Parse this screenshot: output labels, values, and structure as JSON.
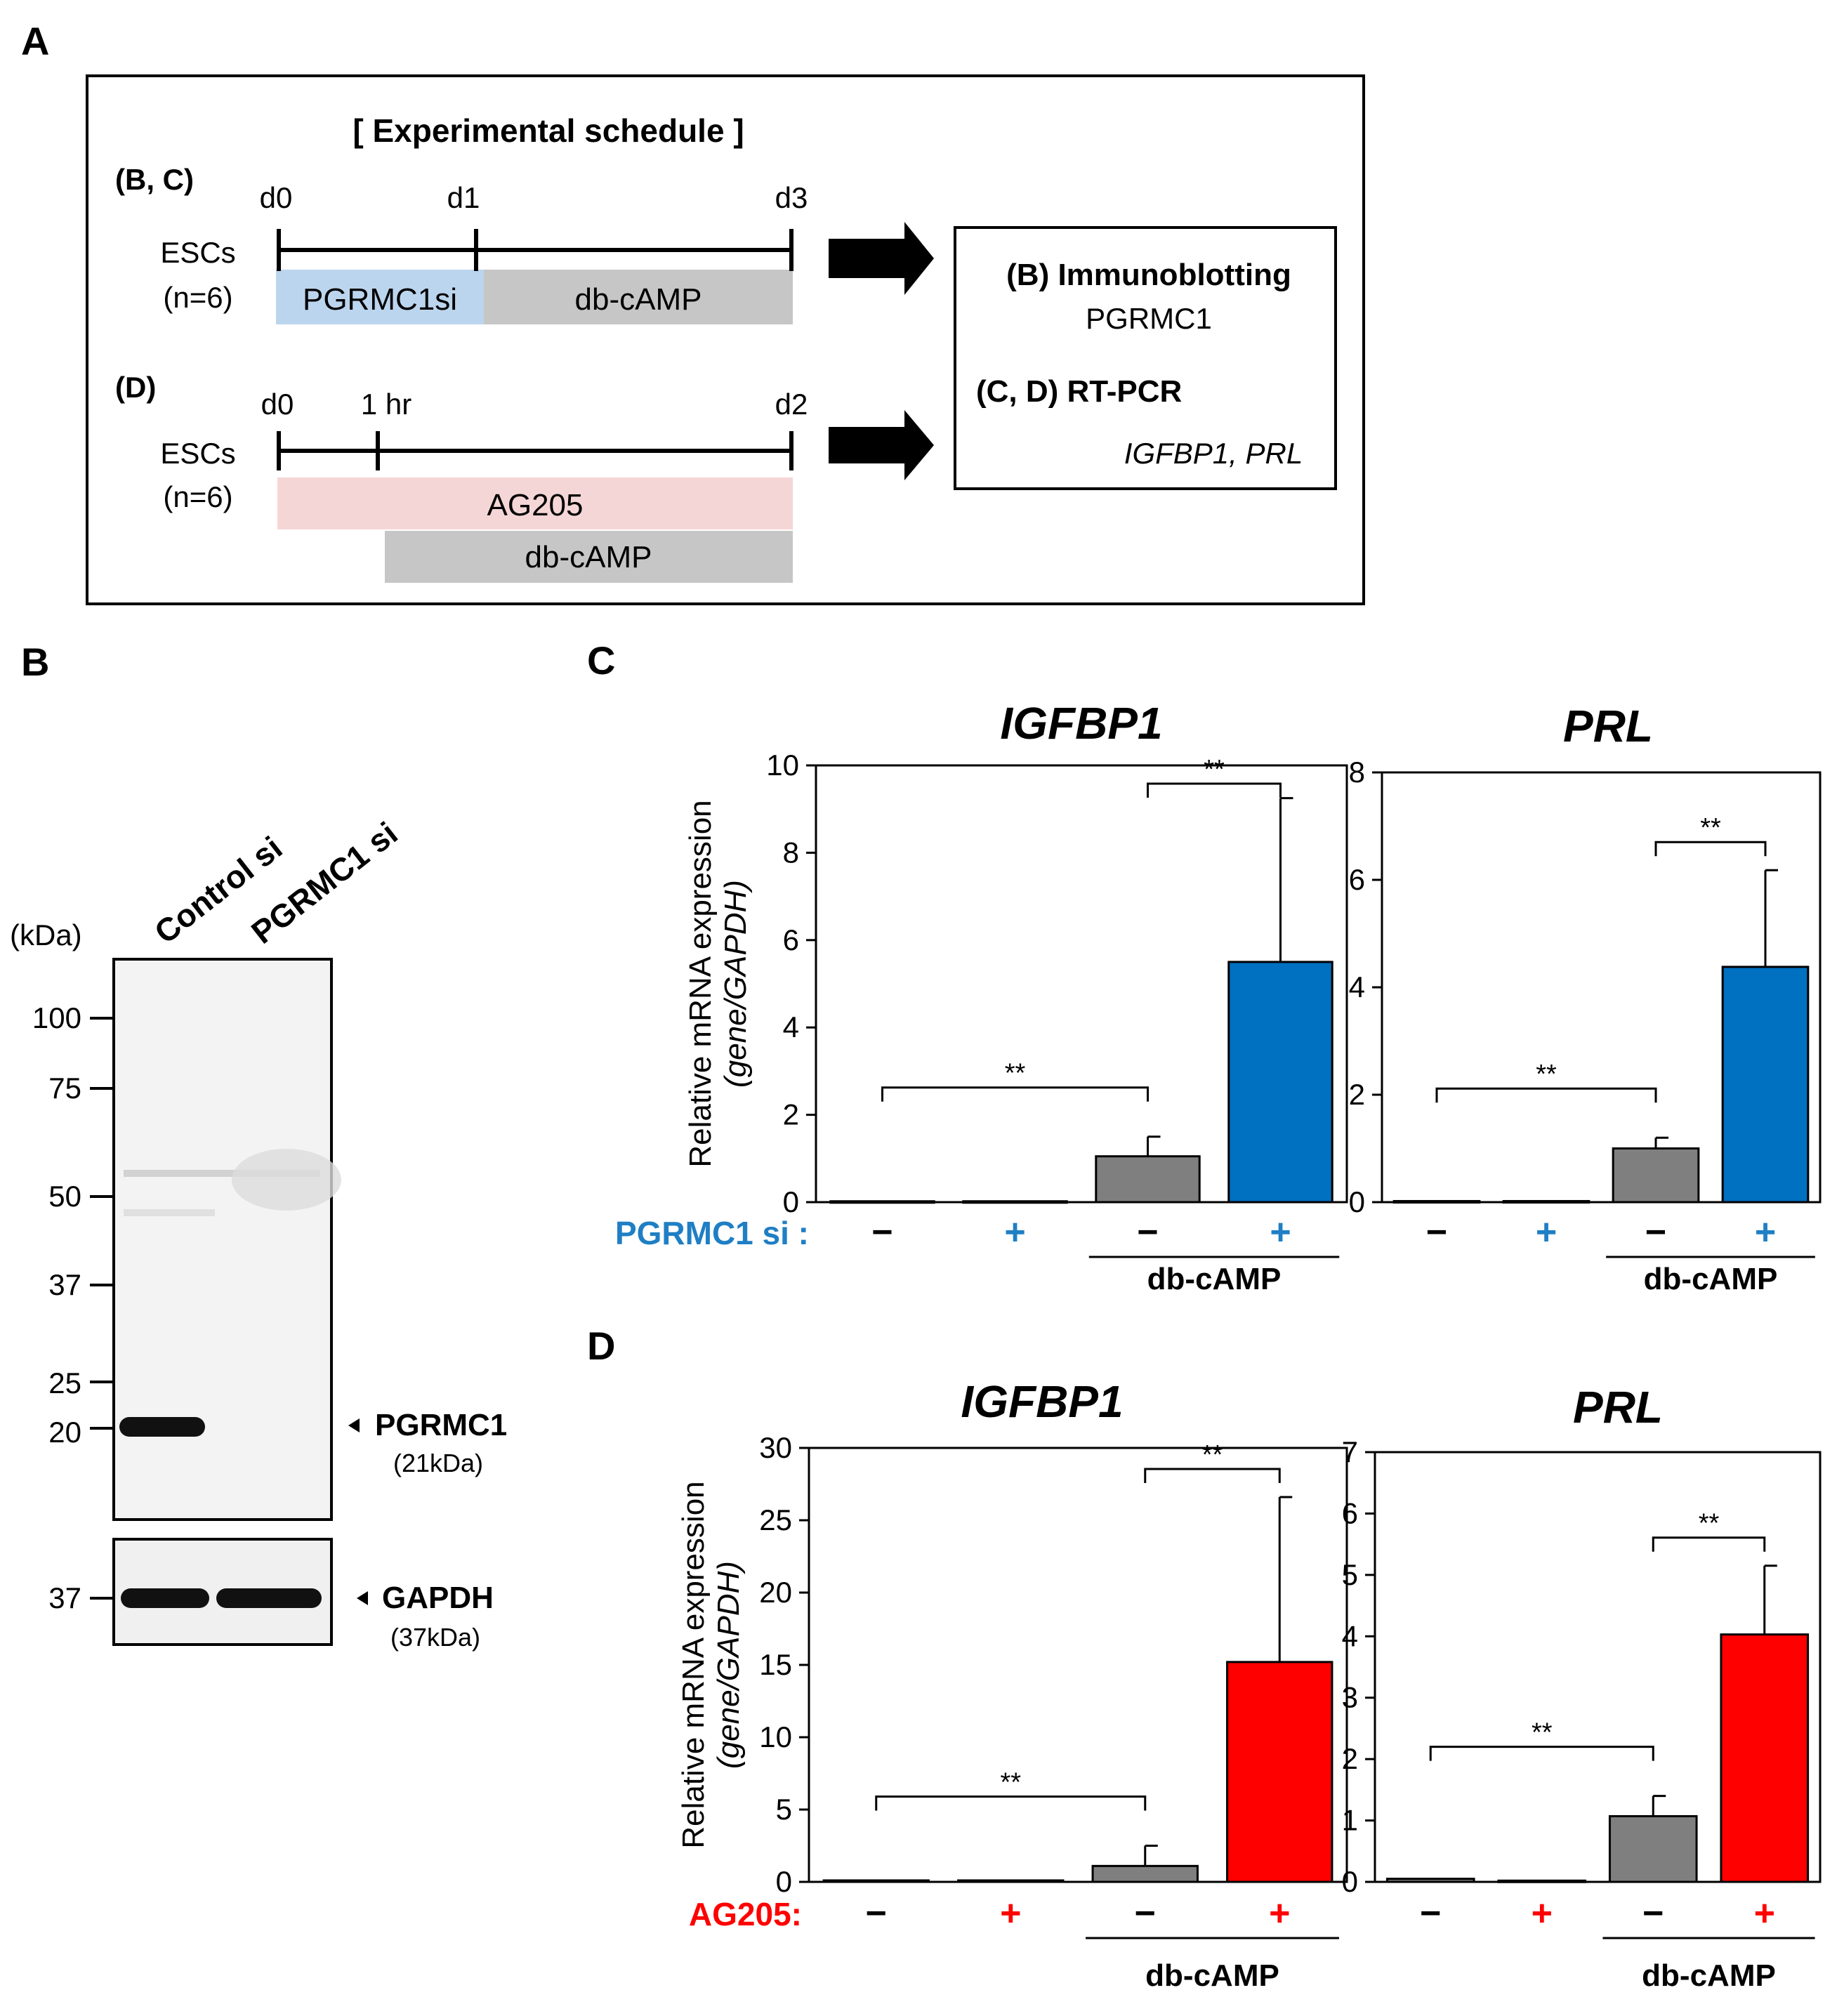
{
  "panel_labels": {
    "a": "A",
    "b": "B",
    "c": "C",
    "d": "D"
  },
  "schedule": {
    "title": "[ Experimental schedule ]",
    "group1": {
      "tag": "(B, C)",
      "cells": "ESCs",
      "n": "(n=6)",
      "days": [
        "d0",
        "d1",
        "d3"
      ],
      "bar1": "PGRMC1si",
      "bar2": "db-cAMP"
    },
    "group2": {
      "tag": "(D)",
      "cells": "ESCs",
      "n": "(n=6)",
      "days": [
        "d0",
        "1 hr",
        "d2"
      ],
      "bar1": "AG205",
      "bar2": "db-cAMP"
    },
    "result": {
      "b_title": "(B) Immunoblotting",
      "b_target": "PGRMC1",
      "cd_title": "(C, D) RT-PCR",
      "cd_genes": "IGFBP1, PRL"
    },
    "colors": {
      "sirna": "#bcd5ee",
      "camp": "#c6c6c6",
      "ag205": "#f5d6d6"
    }
  },
  "blot": {
    "lanes": [
      "Control si",
      "PGRMC1 si"
    ],
    "kda_label": "(kDa)",
    "markers": [
      "100",
      "75",
      "50",
      "37",
      "25",
      "20"
    ],
    "gapdh_marker": "37",
    "band1": {
      "name": "PGRMC1",
      "size": "(21kDa)"
    },
    "band2": {
      "name": "GAPDH",
      "size": "(37kDa)"
    }
  },
  "c_treat_label": "PGRMC1 si :",
  "d_treat_label": "AG205:",
  "camp_label": "db-cAMP",
  "minus_sign": "−",
  "plus_sign": "+",
  "sig_mark": "**",
  "colors": {
    "control": "#7f7f7f",
    "c_treat": "#0070c0",
    "d_treat": "#ff0000",
    "c_text": "#1f7fc4",
    "d_text": "#ff0000"
  },
  "chart_data": [
    {
      "id": "C-IGFBP1",
      "type": "bar",
      "title": "IGFBP1",
      "ylabel": "Relative mRNA expression",
      "ylabel_sub": "(gene/GAPDH)",
      "categories": [
        "−",
        "+",
        "−",
        "+"
      ],
      "values": [
        0.02,
        0.02,
        1.05,
        5.5
      ],
      "errors": [
        0,
        0,
        0.45,
        3.75
      ],
      "ylim": [
        0,
        10
      ],
      "ticks": [
        "0",
        "2",
        "4",
        "6",
        "8",
        "10"
      ],
      "significance": [
        {
          "from": 0,
          "to": 2,
          "label": "**"
        },
        {
          "from": 2,
          "to": 3,
          "label": "**"
        }
      ]
    },
    {
      "id": "C-PRL",
      "type": "bar",
      "title": "PRL",
      "categories": [
        "−",
        "+",
        "−",
        "+"
      ],
      "values": [
        0.02,
        0.02,
        1.0,
        4.38
      ],
      "errors": [
        0,
        0,
        0.2,
        1.8
      ],
      "ylim": [
        0,
        8
      ],
      "ticks": [
        "0",
        "2",
        "4",
        "6",
        "8"
      ],
      "significance": [
        {
          "from": 0,
          "to": 2,
          "label": "**"
        },
        {
          "from": 2,
          "to": 3,
          "label": "**"
        }
      ]
    },
    {
      "id": "D-IGFBP1",
      "type": "bar",
      "title": "IGFBP1",
      "ylabel": "Relative mRNA expression",
      "ylabel_sub": "(gene/GAPDH)",
      "categories": [
        "−",
        "+",
        "−",
        "+"
      ],
      "values": [
        0.1,
        0.1,
        1.1,
        15.2
      ],
      "errors": [
        0,
        0,
        1.4,
        11.4
      ],
      "ylim": [
        0,
        30
      ],
      "ticks": [
        "0",
        "5",
        "10",
        "15",
        "20",
        "25",
        "30"
      ],
      "significance": [
        {
          "from": 0,
          "to": 2,
          "label": "**"
        },
        {
          "from": 2,
          "to": 3,
          "label": "**"
        }
      ]
    },
    {
      "id": "D-PRL",
      "type": "bar",
      "title": "PRL",
      "categories": [
        "−",
        "+",
        "−",
        "+"
      ],
      "values": [
        0.05,
        0.02,
        1.07,
        4.03
      ],
      "errors": [
        0,
        0,
        0.33,
        1.12
      ],
      "ylim": [
        0,
        7
      ],
      "ticks": [
        "0",
        "1",
        "2",
        "3",
        "4",
        "5",
        "6",
        "7"
      ],
      "significance": [
        {
          "from": 0,
          "to": 2,
          "label": "**"
        },
        {
          "from": 2,
          "to": 3,
          "label": "**"
        }
      ]
    }
  ]
}
